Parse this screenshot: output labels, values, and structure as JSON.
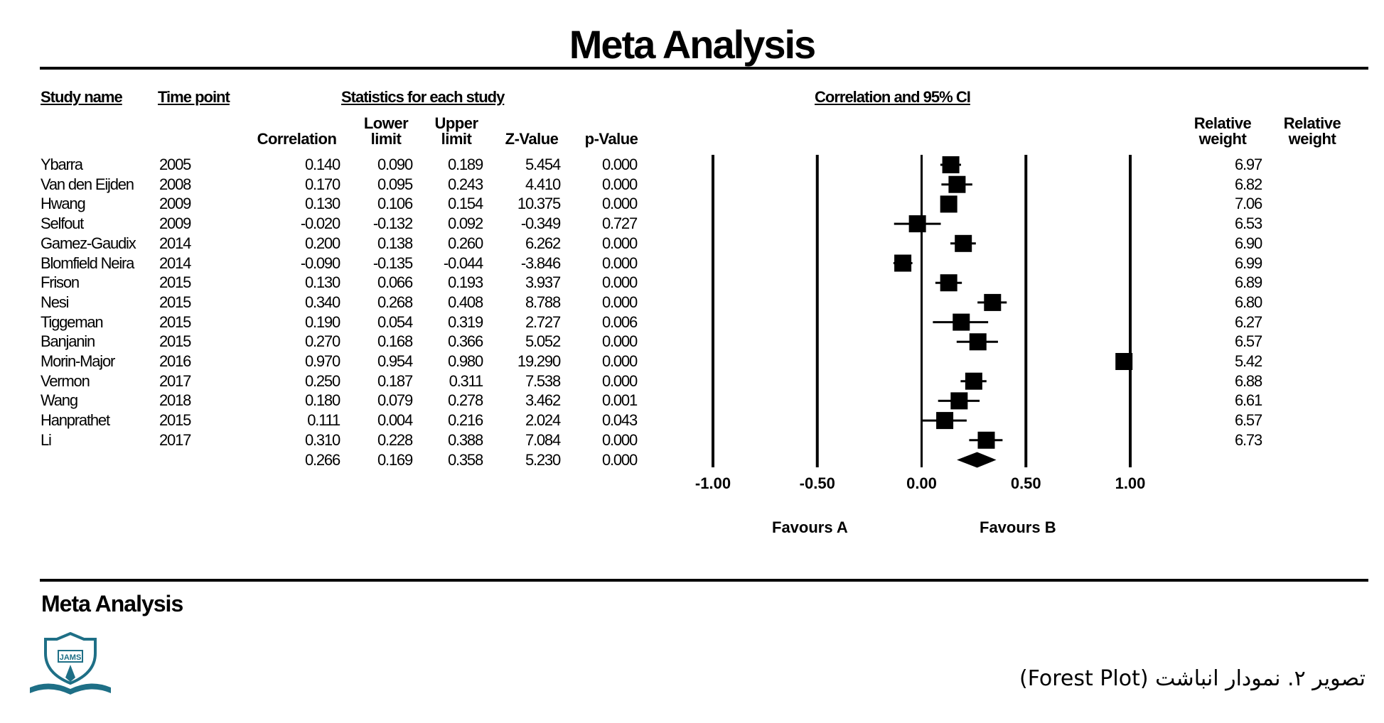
{
  "title": "Meta Analysis",
  "headers": {
    "study_name": "Study name",
    "time_point": "Time point",
    "stats": "Statistics for each study",
    "ci": "Correlation and 95% CI",
    "correlation": "Correlation",
    "lower_1": "Lower",
    "lower_2": "limit",
    "upper_1": "Upper",
    "upper_2": "limit",
    "z": "Z-Value",
    "p": "p-Value",
    "rw1_1": "Relative",
    "rw1_2": "weight",
    "rw2_1": "Relative",
    "rw2_2": "weight"
  },
  "rows": [
    {
      "study": "Ybarra",
      "year": "2005",
      "corr": "0.140",
      "lower": "0.090",
      "upper": "0.189",
      "z": "5.454",
      "p": "0.000",
      "weight": "6.97"
    },
    {
      "study": "Van den Eijden",
      "year": "2008",
      "corr": "0.170",
      "lower": "0.095",
      "upper": "0.243",
      "z": "4.410",
      "p": "0.000",
      "weight": "6.82"
    },
    {
      "study": "Hwang",
      "year": "2009",
      "corr": "0.130",
      "lower": "0.106",
      "upper": "0.154",
      "z": "10.375",
      "p": "0.000",
      "weight": "7.06"
    },
    {
      "study": "Selfout",
      "year": "2009",
      "corr": "-0.020",
      "lower": "-0.132",
      "upper": "0.092",
      "z": "-0.349",
      "p": "0.727",
      "weight": "6.53"
    },
    {
      "study": "Gamez-Gaudix",
      "year": "2014",
      "corr": "0.200",
      "lower": "0.138",
      "upper": "0.260",
      "z": "6.262",
      "p": "0.000",
      "weight": "6.90"
    },
    {
      "study": "Blomfield Neira",
      "year": "2014",
      "corr": "-0.090",
      "lower": "-0.135",
      "upper": "-0.044",
      "z": "-3.846",
      "p": "0.000",
      "weight": "6.99"
    },
    {
      "study": "Frison",
      "year": "2015",
      "corr": "0.130",
      "lower": "0.066",
      "upper": "0.193",
      "z": "3.937",
      "p": "0.000",
      "weight": "6.89"
    },
    {
      "study": "Nesi",
      "year": "2015",
      "corr": "0.340",
      "lower": "0.268",
      "upper": "0.408",
      "z": "8.788",
      "p": "0.000",
      "weight": "6.80"
    },
    {
      "study": "Tiggeman",
      "year": "2015",
      "corr": "0.190",
      "lower": "0.054",
      "upper": "0.319",
      "z": "2.727",
      "p": "0.006",
      "weight": "6.27"
    },
    {
      "study": "Banjanin",
      "year": "2015",
      "corr": "0.270",
      "lower": "0.168",
      "upper": "0.366",
      "z": "5.052",
      "p": "0.000",
      "weight": "6.57"
    },
    {
      "study": "Morin-Major",
      "year": "2016",
      "corr": "0.970",
      "lower": "0.954",
      "upper": "0.980",
      "z": "19.290",
      "p": "0.000",
      "weight": "5.42"
    },
    {
      "study": "Vermon",
      "year": "2017",
      "corr": "0.250",
      "lower": "0.187",
      "upper": "0.311",
      "z": "7.538",
      "p": "0.000",
      "weight": "6.88"
    },
    {
      "study": "Wang",
      "year": "2018",
      "corr": "0.180",
      "lower": "0.079",
      "upper": "0.278",
      "z": "3.462",
      "p": "0.001",
      "weight": "6.61"
    },
    {
      "study": "Hanprathet",
      "year": "2015",
      "corr": "0.111",
      "lower": "0.004",
      "upper": "0.216",
      "z": "2.024",
      "p": "0.043",
      "weight": "6.57"
    },
    {
      "study": "Li",
      "year": "2017",
      "corr": "0.310",
      "lower": "0.228",
      "upper": "0.388",
      "z": "7.084",
      "p": "0.000",
      "weight": "6.73"
    }
  ],
  "summary": {
    "corr": "0.266",
    "lower": "0.169",
    "upper": "0.358",
    "z": "5.230",
    "p": "0.000"
  },
  "favour_a": "Favours A",
  "favour_b": "Favours B",
  "footer_title": "Meta Analysis",
  "caption": "تصویر ۲. نمودار انباشت (Forest Plot)",
  "logo_text": "JAMS",
  "chart_data": {
    "type": "forest",
    "title": "Meta Analysis",
    "x_ticks": [
      "-1.00",
      "-0.50",
      "0.00",
      "0.50",
      "1.00"
    ],
    "xlim": [
      -1,
      1
    ],
    "studies": [
      {
        "name": "Ybarra",
        "effect": 0.14,
        "lower": 0.09,
        "upper": 0.189
      },
      {
        "name": "Van den Eijden",
        "effect": 0.17,
        "lower": 0.095,
        "upper": 0.243
      },
      {
        "name": "Hwang",
        "effect": 0.13,
        "lower": 0.106,
        "upper": 0.154
      },
      {
        "name": "Selfout",
        "effect": -0.02,
        "lower": -0.132,
        "upper": 0.092
      },
      {
        "name": "Gamez-Gaudix",
        "effect": 0.2,
        "lower": 0.138,
        "upper": 0.26
      },
      {
        "name": "Blomfield Neira",
        "effect": -0.09,
        "lower": -0.135,
        "upper": -0.044
      },
      {
        "name": "Frison",
        "effect": 0.13,
        "lower": 0.066,
        "upper": 0.193
      },
      {
        "name": "Nesi",
        "effect": 0.34,
        "lower": 0.268,
        "upper": 0.408
      },
      {
        "name": "Tiggeman",
        "effect": 0.19,
        "lower": 0.054,
        "upper": 0.319
      },
      {
        "name": "Banjanin",
        "effect": 0.27,
        "lower": 0.168,
        "upper": 0.366
      },
      {
        "name": "Morin-Major",
        "effect": 0.97,
        "lower": 0.954,
        "upper": 0.98
      },
      {
        "name": "Vermon",
        "effect": 0.25,
        "lower": 0.187,
        "upper": 0.311
      },
      {
        "name": "Wang",
        "effect": 0.18,
        "lower": 0.079,
        "upper": 0.278
      },
      {
        "name": "Hanprathet",
        "effect": 0.111,
        "lower": 0.004,
        "upper": 0.216
      },
      {
        "name": "Li",
        "effect": 0.31,
        "lower": 0.228,
        "upper": 0.388
      }
    ],
    "summary": {
      "effect": 0.266,
      "lower": 0.169,
      "upper": 0.358
    }
  }
}
